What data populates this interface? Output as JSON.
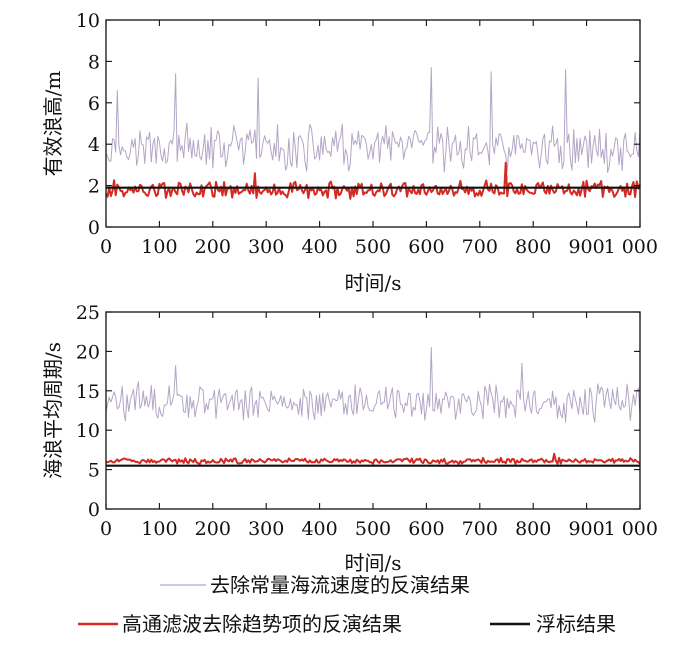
{
  "colors": {
    "gray_series": "#b3a6c6",
    "red_series": "#d42a22",
    "black_series": "#111111"
  },
  "legend": [
    {
      "name": "去除常量海流速度的反演结果",
      "color": "#b3a6c6"
    },
    {
      "name": "高通滤波去除趋势项的反演结果",
      "color": "#d42a22"
    },
    {
      "name": "浮标结果",
      "color": "#111111"
    }
  ],
  "chart_data": [
    {
      "type": "line",
      "xlabel": "时间/s",
      "ylabel": "有效浪高/m",
      "xlim": [
        0,
        1000
      ],
      "ylim": [
        0,
        10
      ],
      "xticks": [
        0,
        100,
        200,
        300,
        400,
        500,
        600,
        700,
        800,
        900,
        1000
      ],
      "xtick_labels": [
        "0",
        "100",
        "200",
        "300",
        "400",
        "500",
        "600",
        "700",
        "800",
        "900",
        "1 000"
      ],
      "yticks": [
        0,
        2,
        4,
        6,
        8,
        10
      ],
      "ytick_labels": [
        "0",
        "2",
        "4",
        "6",
        "8",
        "10"
      ],
      "series": [
        {
          "name": "去除常量海流速度的反演结果",
          "pattern": "noisy",
          "base": 3.8,
          "amplitude": 0.9,
          "peaks": [
            [
              20,
              6.6
            ],
            [
              130,
              7.4
            ],
            [
              285,
              7.2
            ],
            [
              610,
              7.7
            ],
            [
              720,
              7.5
            ],
            [
              860,
              7.6
            ]
          ]
        },
        {
          "name": "高通滤波去除趋势项的反演结果",
          "pattern": "noisy",
          "base": 1.8,
          "amplitude": 0.35,
          "peaks": [
            [
              280,
              2.6
            ],
            [
              750,
              3.1
            ]
          ]
        },
        {
          "name": "浮标结果",
          "pattern": "constant",
          "value": 1.9
        }
      ]
    },
    {
      "type": "line",
      "xlabel": "时间/s",
      "ylabel": "海浪平均周期/s",
      "xlim": [
        0,
        1000
      ],
      "ylim": [
        0,
        25
      ],
      "xticks": [
        0,
        100,
        200,
        300,
        400,
        500,
        600,
        700,
        800,
        900,
        1000
      ],
      "xtick_labels": [
        "0",
        "100",
        "200",
        "300",
        "400",
        "500",
        "600",
        "700",
        "800",
        "900",
        "1 000"
      ],
      "yticks": [
        0,
        5,
        10,
        15,
        20,
        25
      ],
      "ytick_labels": [
        "0",
        "5",
        "10",
        "15",
        "20",
        "25"
      ],
      "series": [
        {
          "name": "去除常量海流速度的反演结果",
          "pattern": "noisy",
          "base": 13.5,
          "amplitude": 2.0,
          "peaks": [
            [
              130,
              18.2
            ],
            [
              610,
              20.5
            ],
            [
              780,
              18.5
            ]
          ]
        },
        {
          "name": "高通滤波去除趋势项的反演结果",
          "pattern": "noisy",
          "base": 6.1,
          "amplitude": 0.3,
          "peaks": [
            [
              840,
              7.0
            ]
          ]
        },
        {
          "name": "浮标结果",
          "pattern": "constant",
          "value": 5.5
        }
      ]
    }
  ]
}
